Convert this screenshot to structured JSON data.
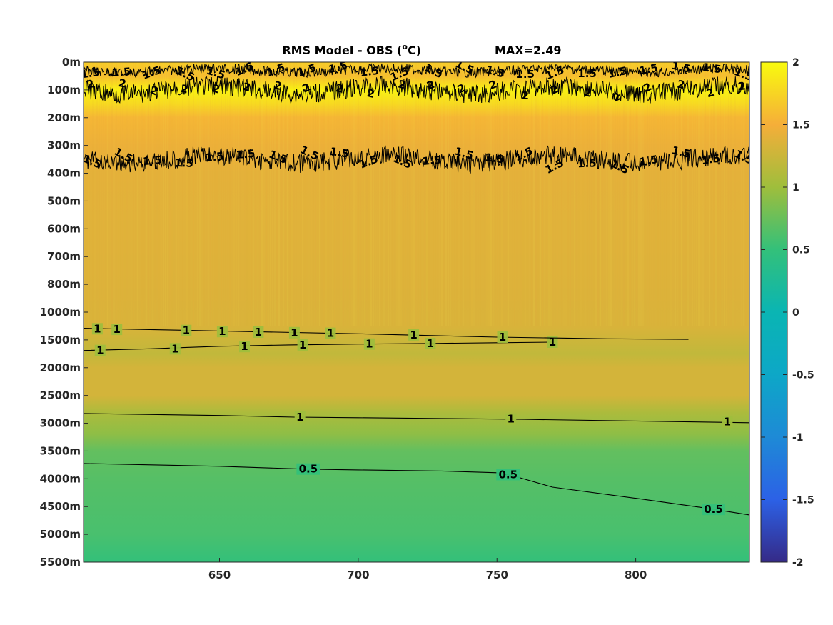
{
  "chart_data": {
    "type": "heatmap",
    "title": "RMS Model - OBS (°C)",
    "title_parts": {
      "prefix": "RMS Model - OBS (",
      "superscript": "o",
      "suffix": "C)"
    },
    "annotation": "MAX=2.49",
    "x_ticks": [
      "650",
      "700",
      "750",
      "800"
    ],
    "x_tick_values": [
      650,
      700,
      750,
      800
    ],
    "xlim": [
      601,
      841
    ],
    "y_ticks": [
      "0m",
      "100m",
      "200m",
      "300m",
      "400m",
      "500m",
      "600m",
      "700m",
      "800m",
      "1000m",
      "1500m",
      "2000m",
      "2500m",
      "3000m",
      "3500m",
      "4000m",
      "4500m",
      "5000m",
      "5500m"
    ],
    "y_scale": "stretched depth (each tick equally spaced)",
    "colorbar": {
      "colormap": "parula",
      "range": [
        -2,
        2
      ],
      "ticks": [
        "2",
        "1.5",
        "1",
        "0.5",
        "0",
        "-0.5",
        "-1",
        "-1.5",
        "-2"
      ],
      "tick_values": [
        2,
        1.5,
        1,
        0.5,
        0,
        -0.5,
        -1,
        -1.5,
        -2
      ]
    },
    "field_profile": {
      "depth_index": [
        0,
        0.5,
        1,
        1.5,
        2,
        3,
        4,
        6,
        8,
        9.5,
        10.5,
        11,
        12,
        12.6,
        13.4,
        14,
        15,
        16,
        17,
        18
      ],
      "value": [
        1.7,
        1.6,
        1.95,
        1.78,
        1.55,
        1.45,
        1.4,
        1.38,
        1.36,
        1.34,
        1.2,
        1.3,
        1.3,
        1.08,
        0.92,
        0.72,
        0.66,
        0.63,
        0.6,
        0.5
      ]
    },
    "contours": [
      {
        "level": "0.5",
        "x": [
          601,
          650,
          680,
          700,
          730,
          750,
          756,
          770,
          800,
          825,
          841
        ],
        "y_depth_index": [
          14.45,
          14.55,
          14.65,
          14.68,
          14.72,
          14.78,
          14.9,
          15.3,
          15.7,
          16.05,
          16.3
        ],
        "labels": [
          {
            "text": "0.5",
            "x": 682,
            "y_depth_index": 14.65
          },
          {
            "text": "0.5",
            "x": 754,
            "y_depth_index": 14.85
          },
          {
            "text": "0.5",
            "x": 828,
            "y_depth_index": 16.1
          }
        ]
      },
      {
        "level": "1",
        "x": [
          601,
          650,
          677,
          700,
          730,
          760,
          800,
          841
        ],
        "y_depth_index": [
          12.65,
          12.72,
          12.78,
          12.8,
          12.83,
          12.86,
          12.92,
          12.98
        ],
        "labels": [
          {
            "text": "1",
            "x": 679,
            "y_depth_index": 12.78
          },
          {
            "text": "1",
            "x": 755,
            "y_depth_index": 12.85
          },
          {
            "text": "1",
            "x": 833,
            "y_depth_index": 12.95
          }
        ]
      },
      {
        "level": "1",
        "x": [
          601,
          625,
          650,
          675,
          700,
          725,
          750,
          770
        ],
        "y_depth_index": [
          10.38,
          10.32,
          10.23,
          10.18,
          10.15,
          10.13,
          10.1,
          10.08
        ],
        "labels": [
          {
            "text": "1",
            "x": 607,
            "y_depth_index": 10.38
          },
          {
            "text": "1",
            "x": 634,
            "y_depth_index": 10.32
          },
          {
            "text": "1",
            "x": 659,
            "y_depth_index": 10.24
          },
          {
            "text": "1",
            "x": 680,
            "y_depth_index": 10.18
          },
          {
            "text": "1",
            "x": 704,
            "y_depth_index": 10.15
          },
          {
            "text": "1",
            "x": 726,
            "y_depth_index": 10.13
          },
          {
            "text": "1",
            "x": 770,
            "y_depth_index": 10.08
          }
        ]
      },
      {
        "level": "1",
        "x": [
          601,
          650,
          700,
          750,
          790,
          819
        ],
        "y_depth_index": [
          9.58,
          9.68,
          9.78,
          9.9,
          9.96,
          9.98
        ],
        "labels": [
          {
            "text": "1",
            "x": 606,
            "y_depth_index": 9.6
          },
          {
            "text": "1",
            "x": 613,
            "y_depth_index": 9.62
          },
          {
            "text": "1",
            "x": 638,
            "y_depth_index": 9.66
          },
          {
            "text": "1",
            "x": 651,
            "y_depth_index": 9.7
          },
          {
            "text": "1",
            "x": 664,
            "y_depth_index": 9.72
          },
          {
            "text": "1",
            "x": 677,
            "y_depth_index": 9.74
          },
          {
            "text": "1",
            "x": 690,
            "y_depth_index": 9.76
          },
          {
            "text": "1",
            "x": 720,
            "y_depth_index": 9.82
          },
          {
            "text": "1",
            "x": 752,
            "y_depth_index": 9.9
          }
        ]
      },
      {
        "level": "1.5",
        "band": "noisy",
        "y_depth_index_center": 0.3,
        "amplitude": 0.18
      },
      {
        "level": "2",
        "band": "noisy",
        "y_depth_index_center": 1.0,
        "amplitude": 0.35
      },
      {
        "level": "1.5",
        "band": "noisy",
        "y_depth_index_center": 3.5,
        "amplitude": 0.35
      }
    ]
  }
}
